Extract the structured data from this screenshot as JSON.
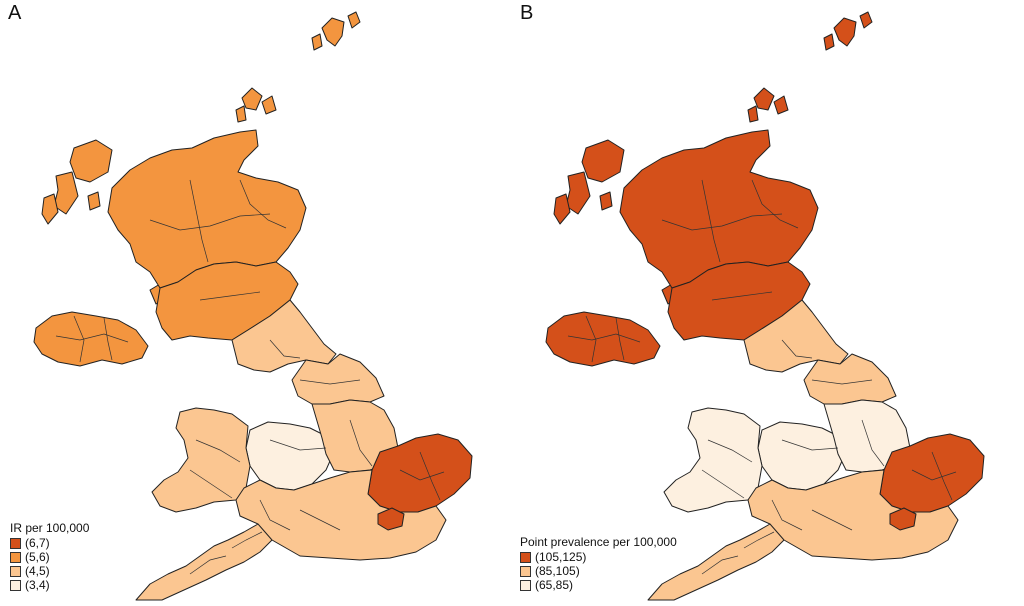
{
  "panels": [
    {
      "letter": "A",
      "legend_title": "IR per 100,000",
      "legend": [
        {
          "label": "(6,7)",
          "color": "#d4501a"
        },
        {
          "label": "(5,6)",
          "color": "#f3953f"
        },
        {
          "label": "(4,5)",
          "color": "#fbc691"
        },
        {
          "label": "(3,4)",
          "color": "#fdf0e0"
        }
      ],
      "region_class": {
        "scotland": 1,
        "islands": 1,
        "northern_ireland": 1,
        "southern_scotland": 1,
        "north_england": 2,
        "yorkshire": 2,
        "west_midlands": 3,
        "east_midlands": 2,
        "wales": 2,
        "east_england": 0,
        "south_west": 2,
        "south_east": 2,
        "london": 0
      }
    },
    {
      "letter": "B",
      "legend_title": "Point prevalence per 100,000",
      "legend": [
        {
          "label": "(105,125)",
          "color": "#d4501a"
        },
        {
          "label": "(85,105)",
          "color": "#fbc691"
        },
        {
          "label": "(65,85)",
          "color": "#fdf0e0"
        }
      ],
      "region_class": {
        "scotland": 0,
        "islands": 0,
        "northern_ireland": 0,
        "southern_scotland": 0,
        "north_england": 1,
        "yorkshire": 1,
        "west_midlands": 2,
        "east_midlands": 2,
        "wales": 2,
        "east_england": 0,
        "south_west": 1,
        "south_east": 1,
        "london": 0
      }
    }
  ]
}
